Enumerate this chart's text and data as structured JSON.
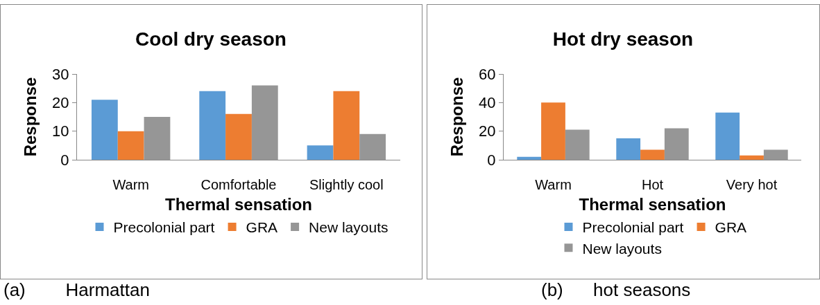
{
  "chart_data": [
    {
      "type": "bar",
      "title": "Cool dry season",
      "xlabel": "Thermal sensation",
      "ylabel": "Response",
      "categories": [
        "Warm",
        "Comfortable",
        "Slightly cool"
      ],
      "series": [
        {
          "name": "Precolonial part",
          "color": "#5b9bd5",
          "values": [
            21,
            24,
            5
          ]
        },
        {
          "name": "GRA",
          "color": "#ed7d31",
          "values": [
            10,
            16,
            24
          ]
        },
        {
          "name": "New layouts",
          "color": "#969696",
          "values": [
            15,
            26,
            9
          ]
        }
      ],
      "ylim": [
        0,
        30
      ],
      "yticks": [
        0,
        10,
        20,
        30
      ],
      "grid": false,
      "legend": "bottom",
      "annotations": [
        "(a)        Harmattan"
      ]
    },
    {
      "type": "bar",
      "title": "Hot dry season",
      "xlabel": "Thermal sensation",
      "ylabel": "Response",
      "categories": [
        "Warm",
        "Hot",
        "Very hot"
      ],
      "series": [
        {
          "name": "Precolonial part",
          "color": "#5b9bd5",
          "values": [
            2,
            15,
            33
          ]
        },
        {
          "name": "GRA",
          "color": "#ed7d31",
          "values": [
            40,
            7,
            3
          ]
        },
        {
          "name": "New layouts",
          "color": "#969696",
          "values": [
            21,
            22,
            7
          ]
        }
      ],
      "ylim": [
        0,
        60
      ],
      "yticks": [
        0,
        20,
        40,
        60
      ],
      "grid": false,
      "legend": "bottom",
      "annotations": [
        "(b)      hot seasons"
      ]
    }
  ]
}
